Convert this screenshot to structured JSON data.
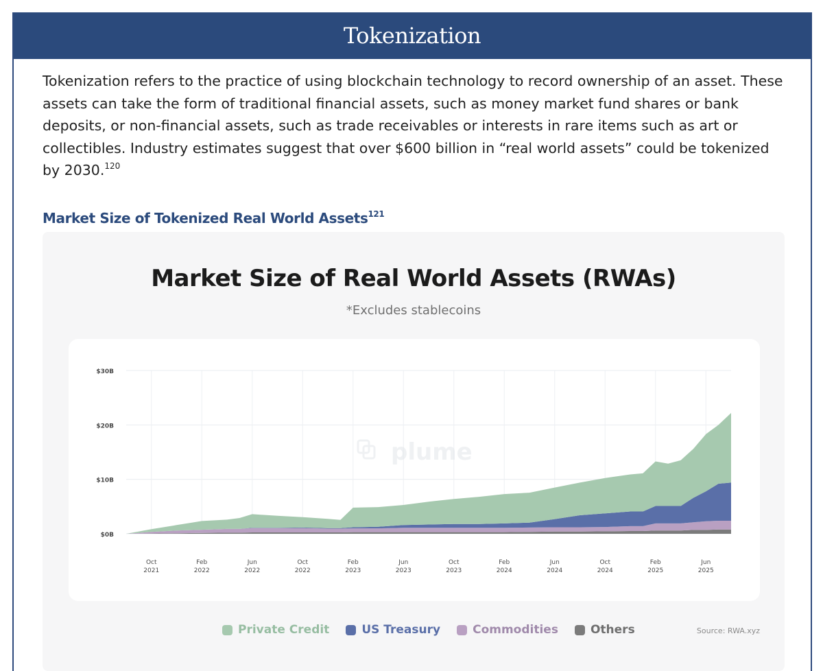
{
  "header": {
    "title": "Tokenization"
  },
  "intro": {
    "text": "Tokenization refers to the practice of using blockchain technology to record ownership of an asset. These assets can take the form of traditional financial assets, such as money market fund shares or bank deposits, or non-financial assets, such as trade receivables or interests in rare items such as art or collectibles. Industry estimates suggest that over $600 billion in “real world assets” could be tokenized by 2030.",
    "footnote": "120"
  },
  "section": {
    "heading": "Market Size of Tokenized Real World Assets",
    "footnote": "121"
  },
  "chart": {
    "watermark": "plume",
    "source": "Source: RWA.xyz"
  },
  "chart_data": {
    "type": "area",
    "stacked": true,
    "title": "Market Size of Real World Assets (RWAs)",
    "subtitle": "*Excludes stablecoins",
    "xlabel": "",
    "ylabel": "",
    "unit": "USD billions",
    "ylim": [
      0,
      30
    ],
    "yticks": [
      {
        "value": 0,
        "label": "$0B"
      },
      {
        "value": 10,
        "label": "$10B"
      },
      {
        "value": 20,
        "label": "$20B"
      },
      {
        "value": 30,
        "label": "$30B"
      }
    ],
    "xlim": [
      "2021-08",
      "2025-08"
    ],
    "xticks": [
      {
        "date": "2021-10",
        "label": [
          "Oct",
          "2021"
        ]
      },
      {
        "date": "2022-02",
        "label": [
          "Feb",
          "2022"
        ]
      },
      {
        "date": "2022-06",
        "label": [
          "Jun",
          "2022"
        ]
      },
      {
        "date": "2022-10",
        "label": [
          "Oct",
          "2022"
        ]
      },
      {
        "date": "2023-02",
        "label": [
          "Feb",
          "2023"
        ]
      },
      {
        "date": "2023-06",
        "label": [
          "Jun",
          "2023"
        ]
      },
      {
        "date": "2023-10",
        "label": [
          "Oct",
          "2023"
        ]
      },
      {
        "date": "2024-02",
        "label": [
          "Feb",
          "2024"
        ]
      },
      {
        "date": "2024-06",
        "label": [
          "Jun",
          "2024"
        ]
      },
      {
        "date": "2024-10",
        "label": [
          "Oct",
          "2024"
        ]
      },
      {
        "date": "2025-02",
        "label": [
          "Feb",
          "2025"
        ]
      },
      {
        "date": "2025-06",
        "label": [
          "Jun",
          "2025"
        ]
      }
    ],
    "grid": true,
    "legend_position": "bottom",
    "x": [
      "2021-08",
      "2021-10",
      "2021-12",
      "2022-02",
      "2022-04",
      "2022-05",
      "2022-06",
      "2022-08",
      "2022-10",
      "2022-12",
      "2023-01",
      "2023-02",
      "2023-04",
      "2023-06",
      "2023-08",
      "2023-10",
      "2023-12",
      "2024-02",
      "2024-04",
      "2024-06",
      "2024-08",
      "2024-10",
      "2024-12",
      "2025-01",
      "2025-02",
      "2025-03",
      "2025-04",
      "2025-05",
      "2025-06",
      "2025-07",
      "2025-08"
    ],
    "series": [
      {
        "name": "Others",
        "color": "#7b7b7b",
        "values": [
          0,
          0.05,
          0.1,
          0.15,
          0.2,
          0.2,
          0.25,
          0.25,
          0.25,
          0.25,
          0.25,
          0.3,
          0.3,
          0.3,
          0.3,
          0.3,
          0.3,
          0.3,
          0.35,
          0.4,
          0.4,
          0.45,
          0.5,
          0.5,
          0.6,
          0.6,
          0.6,
          0.7,
          0.7,
          0.8,
          0.8
        ]
      },
      {
        "name": "Commodities",
        "color": "#b9a0c2",
        "values": [
          0,
          0.3,
          0.5,
          0.6,
          0.7,
          0.7,
          0.8,
          0.8,
          0.8,
          0.7,
          0.7,
          0.7,
          0.7,
          0.8,
          0.8,
          0.8,
          0.8,
          0.8,
          0.8,
          0.8,
          0.8,
          0.8,
          0.9,
          0.9,
          1.3,
          1.3,
          1.3,
          1.4,
          1.6,
          1.6,
          1.6
        ]
      },
      {
        "name": "US Treasury",
        "color": "#5a6fa8",
        "values": [
          0,
          0,
          0,
          0,
          0,
          0,
          0.05,
          0.05,
          0.1,
          0.1,
          0.1,
          0.2,
          0.3,
          0.5,
          0.6,
          0.7,
          0.7,
          0.8,
          0.9,
          1.5,
          2.2,
          2.5,
          2.7,
          2.7,
          3.2,
          3.2,
          3.2,
          4.5,
          5.5,
          6.8,
          7.0
        ]
      },
      {
        "name": "Private Credit",
        "color": "#a6c9af",
        "values": [
          0,
          0.5,
          1.0,
          1.6,
          1.7,
          2.0,
          2.5,
          2.2,
          1.9,
          1.7,
          1.5,
          3.6,
          3.6,
          3.7,
          4.2,
          4.6,
          5.0,
          5.4,
          5.5,
          5.8,
          6.0,
          6.5,
          6.8,
          7.0,
          8.2,
          7.8,
          8.4,
          9.0,
          10.5,
          10.8,
          12.8
        ]
      }
    ],
    "legend": [
      {
        "name": "Private Credit",
        "color": "#a6c9af"
      },
      {
        "name": "US Treasury",
        "color": "#5a6fa8"
      },
      {
        "name": "Commodities",
        "color": "#b9a0c2"
      },
      {
        "name": "Others",
        "color": "#7b7b7b"
      }
    ]
  }
}
